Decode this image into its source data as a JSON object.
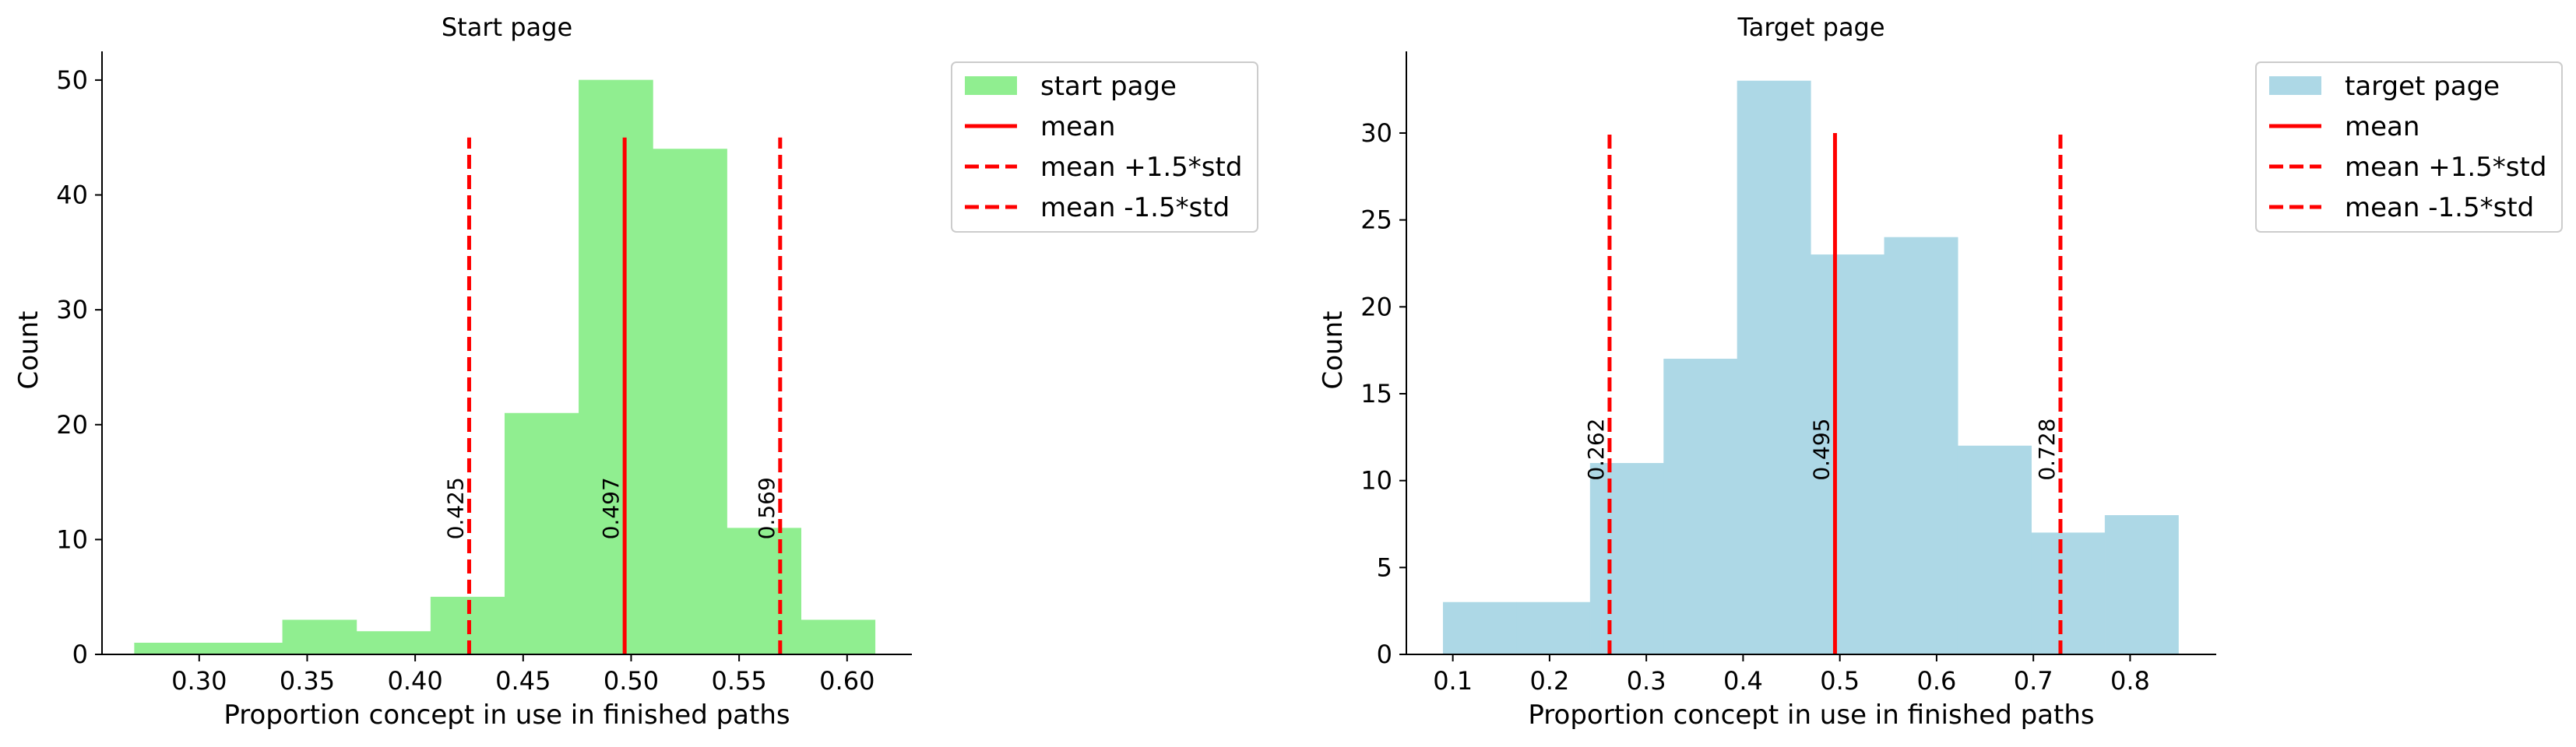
{
  "chart_data": [
    {
      "type": "bar",
      "histogram": true,
      "title": "Start page",
      "xlabel": "Proportion concept in use in finished paths",
      "ylabel": "Count",
      "xlim": [
        0.255,
        0.63
      ],
      "ylim": [
        0,
        52.5
      ],
      "x_ticks": [
        0.3,
        0.35,
        0.4,
        0.45,
        0.5,
        0.55,
        0.6
      ],
      "x_tick_labels": [
        "0.30",
        "0.35",
        "0.40",
        "0.45",
        "0.50",
        "0.55",
        "0.60"
      ],
      "y_ticks": [
        0,
        10,
        20,
        30,
        40,
        50
      ],
      "y_tick_labels": [
        "0",
        "10",
        "20",
        "30",
        "40",
        "50"
      ],
      "bar_color": "#90ee90",
      "bin_edges": [
        0.27,
        0.3043,
        0.3386,
        0.3729,
        0.4072,
        0.4415,
        0.4758,
        0.5101,
        0.5444,
        0.5787,
        0.613
      ],
      "counts": [
        1,
        1,
        3,
        2,
        5,
        21,
        50,
        44,
        11,
        3
      ],
      "lines": [
        {
          "x": 0.425,
          "label": "0.425",
          "style": "dashed",
          "ymax": 45
        },
        {
          "x": 0.497,
          "label": "0.497",
          "style": "solid",
          "ymax": 45
        },
        {
          "x": 0.569,
          "label": "0.569",
          "style": "dashed",
          "ymax": 45
        }
      ],
      "line_label_y": 10,
      "line_color": "#ff0000",
      "legend": [
        {
          "label": "start page",
          "kind": "patch"
        },
        {
          "label": "mean",
          "kind": "solid"
        },
        {
          "label": "mean +1.5*std",
          "kind": "dashed"
        },
        {
          "label": "mean -1.5*std",
          "kind": "dashed"
        }
      ],
      "legend_position": "outside-upper-right",
      "grid": false
    },
    {
      "type": "bar",
      "histogram": true,
      "title": "Target page",
      "xlabel": "Proportion concept in use in finished paths",
      "ylabel": "Count",
      "xlim": [
        0.052,
        0.889
      ],
      "ylim": [
        0,
        34.7
      ],
      "x_ticks": [
        0.1,
        0.2,
        0.3,
        0.4,
        0.5,
        0.6,
        0.7,
        0.8
      ],
      "x_tick_labels": [
        "0.1",
        "0.2",
        "0.3",
        "0.4",
        "0.5",
        "0.6",
        "0.7",
        "0.8"
      ],
      "y_ticks": [
        0,
        5,
        10,
        15,
        20,
        25,
        30
      ],
      "y_tick_labels": [
        "0",
        "5",
        "10",
        "15",
        "20",
        "25",
        "30"
      ],
      "bar_color": "#add8e6",
      "bin_edges": [
        0.09,
        0.166,
        0.242,
        0.318,
        0.394,
        0.47,
        0.546,
        0.622,
        0.698,
        0.774,
        0.85
      ],
      "counts": [
        3,
        3,
        11,
        17,
        33,
        23,
        24,
        12,
        7,
        8
      ],
      "lines": [
        {
          "x": 0.262,
          "label": "0.262",
          "style": "dashed",
          "ymax": 30
        },
        {
          "x": 0.495,
          "label": "0.495",
          "style": "solid",
          "ymax": 30
        },
        {
          "x": 0.728,
          "label": "0.728",
          "style": "dashed",
          "ymax": 30
        }
      ],
      "line_label_y": 10,
      "line_color": "#ff0000",
      "legend": [
        {
          "label": "target page",
          "kind": "patch"
        },
        {
          "label": "mean",
          "kind": "solid"
        },
        {
          "label": "mean +1.5*std",
          "kind": "dashed"
        },
        {
          "label": "mean -1.5*std",
          "kind": "dashed"
        }
      ],
      "legend_position": "outside-upper-right",
      "grid": false
    }
  ]
}
